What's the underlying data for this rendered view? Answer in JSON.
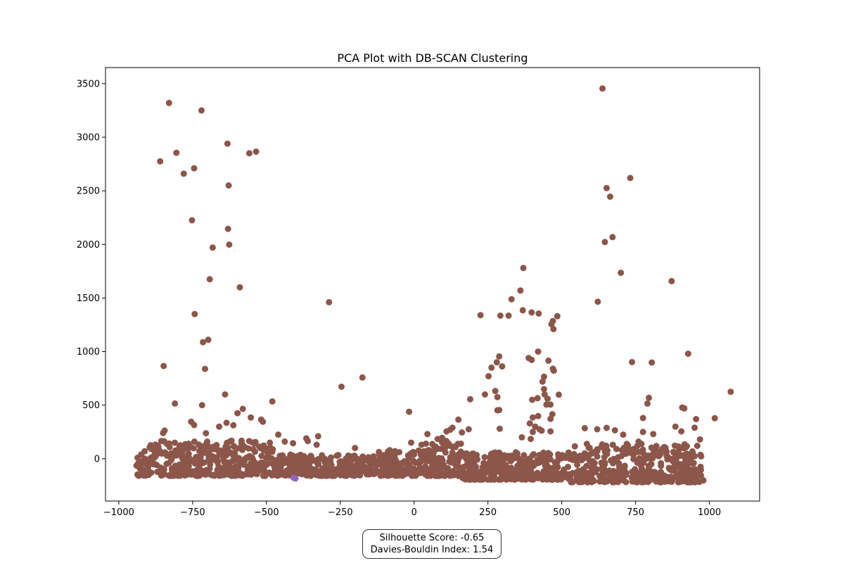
{
  "chart_data": {
    "type": "scatter",
    "title": "PCA Plot with DB-SCAN Clustering",
    "xlabel": "",
    "ylabel": "",
    "xlim": [
      -1045,
      1170
    ],
    "ylim": [
      -395,
      3650
    ],
    "xticks": [
      -1000,
      -750,
      -500,
      -250,
      0,
      250,
      500,
      750,
      1000
    ],
    "yticks": [
      0,
      500,
      1000,
      1500,
      2000,
      2500,
      3000,
      3500
    ],
    "xtick_labels": [
      "−1000",
      "−750",
      "−500",
      "−250",
      "0",
      "250",
      "500",
      "750",
      "1000"
    ],
    "ytick_labels": [
      "0",
      "500",
      "1000",
      "1500",
      "2000",
      "2500",
      "3000",
      "3500"
    ],
    "grid": false,
    "series": [
      {
        "color": "#8c564b",
        "points": [
          [
            -830,
            3320
          ],
          [
            -720,
            3250
          ],
          [
            -860,
            2775
          ],
          [
            -805,
            2855
          ],
          [
            -780,
            2660
          ],
          [
            -745,
            2710
          ],
          [
            -632,
            2940
          ],
          [
            -628,
            2550
          ],
          [
            -558,
            2850
          ],
          [
            -535,
            2865
          ],
          [
            -752,
            2225
          ],
          [
            -630,
            2145
          ],
          [
            -626,
            1998
          ],
          [
            -682,
            1970
          ],
          [
            -692,
            1675
          ],
          [
            -590,
            1600
          ],
          [
            -743,
            1350
          ],
          [
            -697,
            1110
          ],
          [
            -715,
            1088
          ],
          [
            -848,
            865
          ],
          [
            -708,
            838
          ],
          [
            -810,
            515
          ],
          [
            -718,
            500
          ],
          [
            -288,
            1460
          ],
          [
            -246,
            672
          ],
          [
            -175,
            758
          ],
          [
            -17,
            438
          ],
          [
            -480,
            535
          ],
          [
            -755,
            345
          ],
          [
            -745,
            315
          ],
          [
            -580,
            465
          ],
          [
            -598,
            425
          ],
          [
            -553,
            385
          ],
          [
            -518,
            365
          ],
          [
            -512,
            345
          ],
          [
            -635,
            335
          ],
          [
            -612,
            312
          ],
          [
            -660,
            300
          ],
          [
            -705,
            238
          ],
          [
            -845,
            262
          ],
          [
            -850,
            240
          ],
          [
            -640,
            600
          ],
          [
            -460,
            225
          ],
          [
            -438,
            160
          ],
          [
            -325,
            210
          ],
          [
            -365,
            190
          ],
          [
            638,
            3455
          ],
          [
            732,
            2620
          ],
          [
            652,
            2525
          ],
          [
            664,
            2445
          ],
          [
            646,
            2022
          ],
          [
            672,
            2068
          ],
          [
            700,
            1735
          ],
          [
            622,
            1465
          ],
          [
            872,
            1658
          ],
          [
            738,
            902
          ],
          [
            805,
            898
          ],
          [
            928,
            980
          ],
          [
            1072,
            625
          ],
          [
            1018,
            378
          ],
          [
            775,
            380
          ],
          [
            795,
            568
          ],
          [
            908,
            478
          ],
          [
            915,
            470
          ],
          [
            652,
            288
          ],
          [
            578,
            285
          ],
          [
            620,
            275
          ],
          [
            680,
            265
          ],
          [
            708,
            225
          ],
          [
            760,
            160
          ],
          [
            790,
            515
          ],
          [
            775,
            250
          ],
          [
            810,
            230
          ],
          [
            885,
            300
          ],
          [
            905,
            255
          ],
          [
            950,
            290
          ],
          [
            968,
            180
          ],
          [
            955,
            370
          ],
          [
            370,
            1780
          ],
          [
            360,
            1570
          ],
          [
            330,
            1488
          ],
          [
            368,
            1385
          ],
          [
            398,
            1365
          ],
          [
            422,
            1355
          ],
          [
            470,
            1285
          ],
          [
            465,
            1255
          ],
          [
            472,
            1210
          ],
          [
            485,
            1330
          ],
          [
            225,
            1340
          ],
          [
            292,
            1335
          ],
          [
            320,
            1335
          ],
          [
            420,
            1000
          ],
          [
            455,
            915
          ],
          [
            388,
            940
          ],
          [
            398,
            922
          ],
          [
            470,
            840
          ],
          [
            473,
            822
          ],
          [
            440,
            765
          ],
          [
            435,
            720
          ],
          [
            440,
            650
          ],
          [
            442,
            600
          ],
          [
            418,
            565
          ],
          [
            400,
            550
          ],
          [
            452,
            560
          ],
          [
            462,
            505
          ],
          [
            448,
            505
          ],
          [
            468,
            415
          ],
          [
            462,
            372
          ],
          [
            402,
            385
          ],
          [
            420,
            398
          ],
          [
            410,
            300
          ],
          [
            425,
            275
          ],
          [
            432,
            262
          ],
          [
            402,
            250
          ],
          [
            462,
            255
          ],
          [
            392,
            330
          ],
          [
            395,
            185
          ],
          [
            365,
            200
          ],
          [
            288,
            955
          ],
          [
            298,
            862
          ],
          [
            280,
            900
          ],
          [
            262,
            850
          ],
          [
            252,
            770
          ],
          [
            275,
            632
          ],
          [
            282,
            575
          ],
          [
            282,
            452
          ],
          [
            288,
            455
          ],
          [
            240,
            600
          ],
          [
            490,
            598
          ],
          [
            190,
            555
          ],
          [
            290,
            280
          ],
          [
            185,
            275
          ],
          [
            162,
            245
          ],
          [
            150,
            365
          ],
          [
            130,
            290
          ],
          [
            122,
            270
          ],
          [
            110,
            255
          ],
          [
            95,
            195
          ],
          [
            80,
            185
          ],
          [
            45,
            230
          ],
          [
            40,
            140
          ],
          [
            25,
            130
          ],
          [
            -10,
            150
          ],
          [
            -410,
            145
          ],
          [
            -360,
            165
          ],
          [
            -330,
            130
          ],
          [
            -200,
            100
          ],
          [
            -280,
            -60
          ],
          [
            -230,
            -40
          ]
        ]
      },
      {
        "color": "#9467bd",
        "points": [
          [
            -408,
            -178
          ],
          [
            -402,
            -185
          ]
        ]
      }
    ],
    "dense_band": {
      "color": "#8c564b",
      "x_range": [
        -940,
        980
      ],
      "y_range": [
        -220,
        180
      ],
      "description": "dense cluster band near y=0"
    }
  },
  "metrics": {
    "silhouette_label": "Silhouette Score: -0.65",
    "davies_label": "Davies-Bouldin Index: 1.54"
  }
}
